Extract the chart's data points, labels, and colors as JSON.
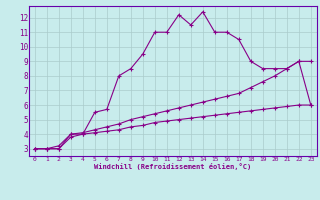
{
  "xlabel": "Windchill (Refroidissement éolien,°C)",
  "bg_color": "#c8ecec",
  "grid_color": "#aacccc",
  "line_color": "#880088",
  "spine_color": "#6600aa",
  "xlim": [
    -0.5,
    23.5
  ],
  "ylim": [
    2.5,
    12.8
  ],
  "xticks": [
    0,
    1,
    2,
    3,
    4,
    5,
    6,
    7,
    8,
    9,
    10,
    11,
    12,
    13,
    14,
    15,
    16,
    17,
    18,
    19,
    20,
    21,
    22,
    23
  ],
  "yticks": [
    3,
    4,
    5,
    6,
    7,
    8,
    9,
    10,
    11,
    12
  ],
  "line1_x": [
    0,
    1,
    2,
    3,
    4,
    5,
    6,
    7,
    8,
    9,
    10,
    11,
    12,
    13,
    14,
    15,
    16,
    17,
    18,
    19,
    20,
    21,
    22,
    23
  ],
  "line1_y": [
    3.0,
    3.0,
    3.0,
    4.0,
    4.0,
    5.5,
    5.7,
    8.0,
    8.5,
    9.5,
    11.0,
    11.0,
    12.2,
    11.5,
    12.4,
    11.0,
    11.0,
    10.5,
    9.0,
    8.5,
    8.5,
    8.5,
    9.0,
    9.0
  ],
  "line2_x": [
    0,
    1,
    2,
    3,
    4,
    5,
    6,
    7,
    8,
    9,
    10,
    11,
    12,
    13,
    14,
    15,
    16,
    17,
    18,
    19,
    20,
    21,
    22,
    23
  ],
  "line2_y": [
    3.0,
    3.0,
    3.2,
    4.0,
    4.1,
    4.3,
    4.5,
    4.7,
    5.0,
    5.2,
    5.4,
    5.6,
    5.8,
    6.0,
    6.2,
    6.4,
    6.6,
    6.8,
    7.2,
    7.6,
    8.0,
    8.5,
    9.0,
    6.0
  ],
  "line3_x": [
    0,
    1,
    2,
    3,
    4,
    5,
    6,
    7,
    8,
    9,
    10,
    11,
    12,
    13,
    14,
    15,
    16,
    17,
    18,
    19,
    20,
    21,
    22,
    23
  ],
  "line3_y": [
    3.0,
    3.0,
    3.0,
    3.8,
    4.0,
    4.1,
    4.2,
    4.3,
    4.5,
    4.6,
    4.8,
    4.9,
    5.0,
    5.1,
    5.2,
    5.3,
    5.4,
    5.5,
    5.6,
    5.7,
    5.8,
    5.9,
    6.0,
    6.0
  ]
}
